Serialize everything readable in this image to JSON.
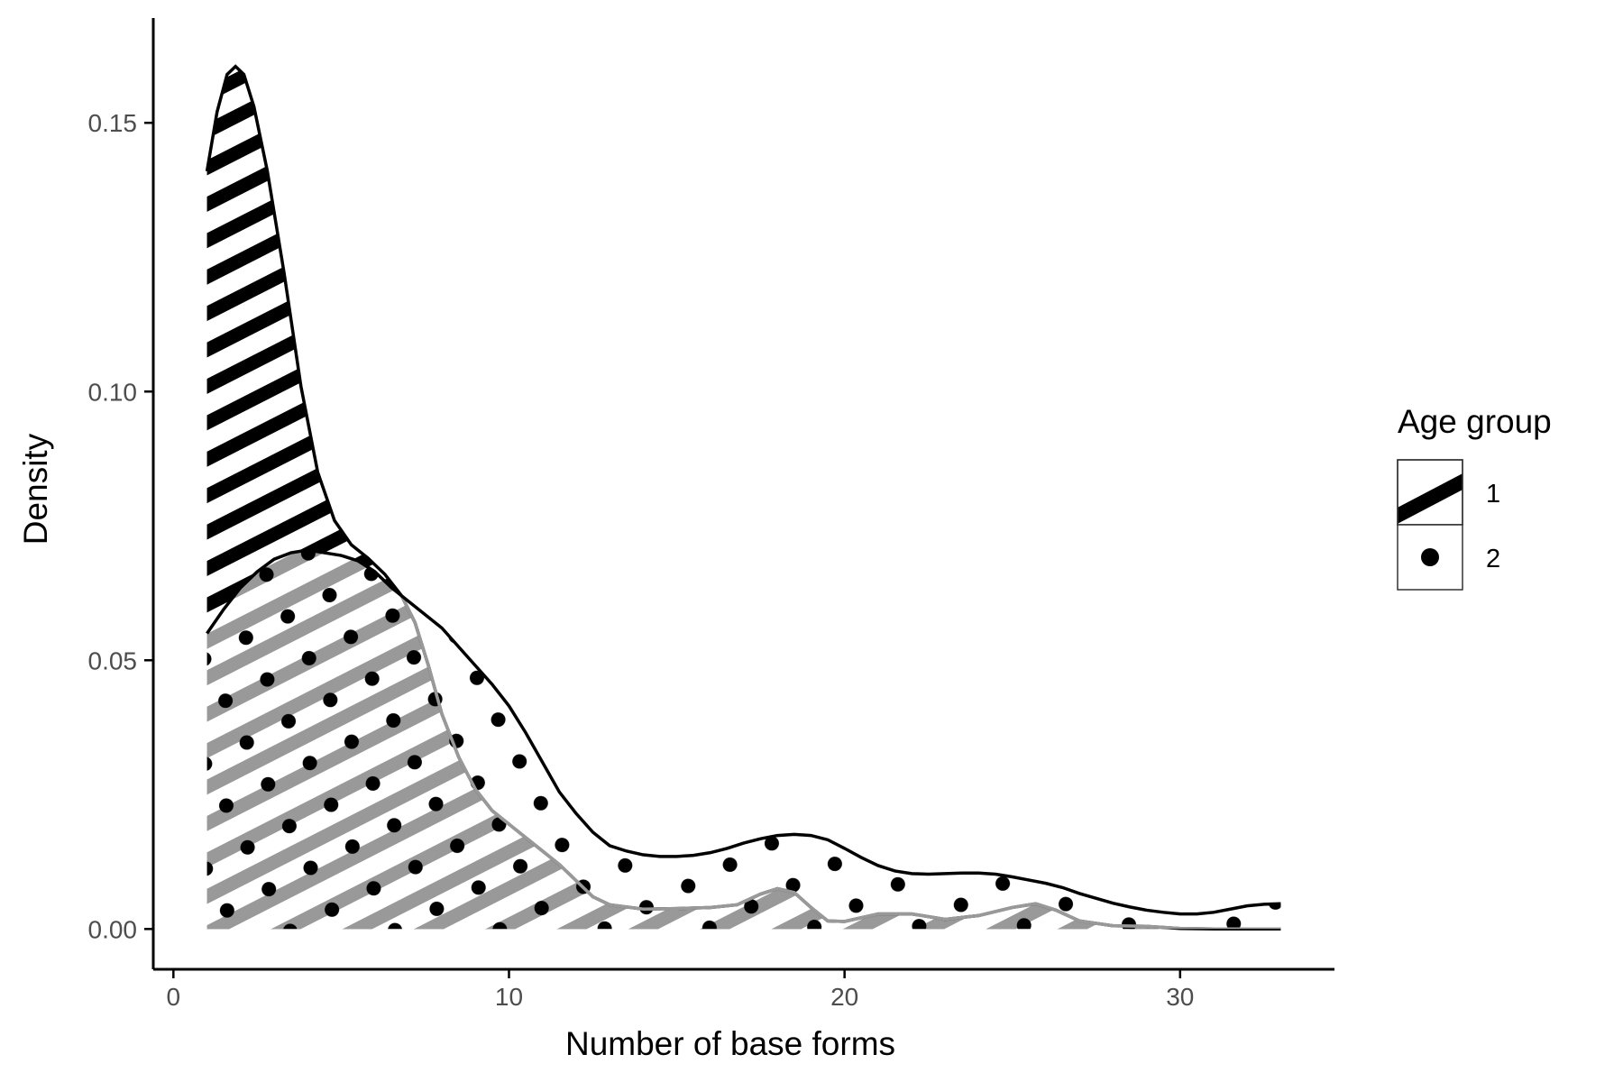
{
  "chart_data": {
    "type": "area",
    "xlabel": "Number of base forms",
    "ylabel": "Density",
    "xlim": [
      -0.6,
      34.6
    ],
    "ylim": [
      -0.0075,
      0.1695
    ],
    "x_ticks": [
      0,
      10,
      20,
      30
    ],
    "x_tick_labels": [
      "0",
      "10",
      "20",
      "30"
    ],
    "y_ticks": [
      0.0,
      0.05,
      0.1,
      0.15
    ],
    "y_tick_labels": [
      "0.00",
      "0.05",
      "0.10",
      "0.15"
    ],
    "grid": false,
    "legend_position": "right",
    "legend": {
      "title": "Age group",
      "entries": [
        {
          "label": "1",
          "pattern": "stripe"
        },
        {
          "label": "2",
          "pattern": "circle"
        }
      ]
    },
    "series": [
      {
        "name": "1",
        "pattern": "stripe",
        "points": [
          [
            1.0,
            0.141
          ],
          [
            1.3,
            0.152
          ],
          [
            1.6,
            0.159
          ],
          [
            1.85,
            0.1605
          ],
          [
            2.1,
            0.159
          ],
          [
            2.4,
            0.153
          ],
          [
            2.8,
            0.141
          ],
          [
            3.3,
            0.122
          ],
          [
            3.8,
            0.101
          ],
          [
            4.3,
            0.085
          ],
          [
            4.8,
            0.076
          ],
          [
            5.3,
            0.0715
          ],
          [
            5.8,
            0.069
          ],
          [
            6.3,
            0.066
          ],
          [
            6.8,
            0.062
          ],
          [
            7.2,
            0.057
          ],
          [
            7.6,
            0.049
          ],
          [
            8.0,
            0.04
          ],
          [
            8.5,
            0.032
          ],
          [
            9.0,
            0.026
          ],
          [
            9.5,
            0.022
          ],
          [
            10.0,
            0.0195
          ],
          [
            10.5,
            0.017
          ],
          [
            11.0,
            0.0145
          ],
          [
            11.5,
            0.012
          ],
          [
            12.0,
            0.009
          ],
          [
            12.5,
            0.006
          ],
          [
            13.0,
            0.0045
          ],
          [
            14.0,
            0.0037
          ],
          [
            15.0,
            0.0038
          ],
          [
            16.0,
            0.004
          ],
          [
            16.8,
            0.0045
          ],
          [
            17.5,
            0.0065
          ],
          [
            18.0,
            0.0075
          ],
          [
            18.5,
            0.0068
          ],
          [
            19.0,
            0.004
          ],
          [
            19.5,
            0.0015
          ],
          [
            20.0,
            0.0014
          ],
          [
            21.0,
            0.0028
          ],
          [
            22.0,
            0.0028
          ],
          [
            23.0,
            0.0018
          ],
          [
            24.0,
            0.0025
          ],
          [
            25.0,
            0.004
          ],
          [
            25.7,
            0.0047
          ],
          [
            26.3,
            0.0035
          ],
          [
            27.0,
            0.0015
          ],
          [
            28.0,
            0.0006
          ],
          [
            29.0,
            0.0005
          ],
          [
            30.0,
            0.0001
          ],
          [
            31.0,
            0.0
          ],
          [
            33.0,
            0.0
          ]
        ]
      },
      {
        "name": "2",
        "pattern": "circle",
        "points": [
          [
            1.0,
            0.055
          ],
          [
            1.5,
            0.0595
          ],
          [
            2.0,
            0.0635
          ],
          [
            2.5,
            0.0665
          ],
          [
            3.0,
            0.0688
          ],
          [
            3.5,
            0.07
          ],
          [
            4.0,
            0.0705
          ],
          [
            4.5,
            0.07
          ],
          [
            5.0,
            0.0695
          ],
          [
            5.5,
            0.0685
          ],
          [
            6.0,
            0.0665
          ],
          [
            6.5,
            0.0635
          ],
          [
            7.0,
            0.061
          ],
          [
            7.5,
            0.0585
          ],
          [
            8.0,
            0.056
          ],
          [
            8.5,
            0.0525
          ],
          [
            9.0,
            0.049
          ],
          [
            9.5,
            0.0455
          ],
          [
            10.0,
            0.0415
          ],
          [
            10.5,
            0.0365
          ],
          [
            11.0,
            0.031
          ],
          [
            11.5,
            0.0255
          ],
          [
            12.0,
            0.0215
          ],
          [
            12.5,
            0.018
          ],
          [
            13.0,
            0.0155
          ],
          [
            13.5,
            0.0145
          ],
          [
            14.0,
            0.0138
          ],
          [
            14.5,
            0.0135
          ],
          [
            15.0,
            0.0135
          ],
          [
            15.5,
            0.0137
          ],
          [
            16.0,
            0.0142
          ],
          [
            16.5,
            0.015
          ],
          [
            17.0,
            0.016
          ],
          [
            17.5,
            0.0168
          ],
          [
            18.0,
            0.0174
          ],
          [
            18.5,
            0.0176
          ],
          [
            19.0,
            0.0174
          ],
          [
            19.5,
            0.0166
          ],
          [
            20.0,
            0.015
          ],
          [
            20.5,
            0.0133
          ],
          [
            21.0,
            0.0118
          ],
          [
            21.5,
            0.0108
          ],
          [
            22.0,
            0.0103
          ],
          [
            22.5,
            0.0102
          ],
          [
            23.0,
            0.0103
          ],
          [
            23.5,
            0.0104
          ],
          [
            24.0,
            0.0104
          ],
          [
            24.5,
            0.0102
          ],
          [
            25.0,
            0.0097
          ],
          [
            25.5,
            0.0091
          ],
          [
            26.0,
            0.0085
          ],
          [
            26.5,
            0.0077
          ],
          [
            27.0,
            0.0066
          ],
          [
            27.5,
            0.0057
          ],
          [
            28.0,
            0.0048
          ],
          [
            28.5,
            0.0041
          ],
          [
            29.0,
            0.0035
          ],
          [
            29.5,
            0.0031
          ],
          [
            30.0,
            0.0028
          ],
          [
            30.5,
            0.0028
          ],
          [
            31.0,
            0.0031
          ],
          [
            31.5,
            0.0037
          ],
          [
            32.0,
            0.0043
          ],
          [
            32.5,
            0.0046
          ],
          [
            33.0,
            0.0047
          ]
        ]
      }
    ]
  },
  "colors": {
    "stripe": "#000000",
    "stripe_lower": "#999999",
    "outline_1": "#000000",
    "outline_2_lower": "#999999",
    "outline_2": "#000000",
    "dot": "#000000",
    "axis": "#000000",
    "tick_label": "#4d4d4d"
  }
}
